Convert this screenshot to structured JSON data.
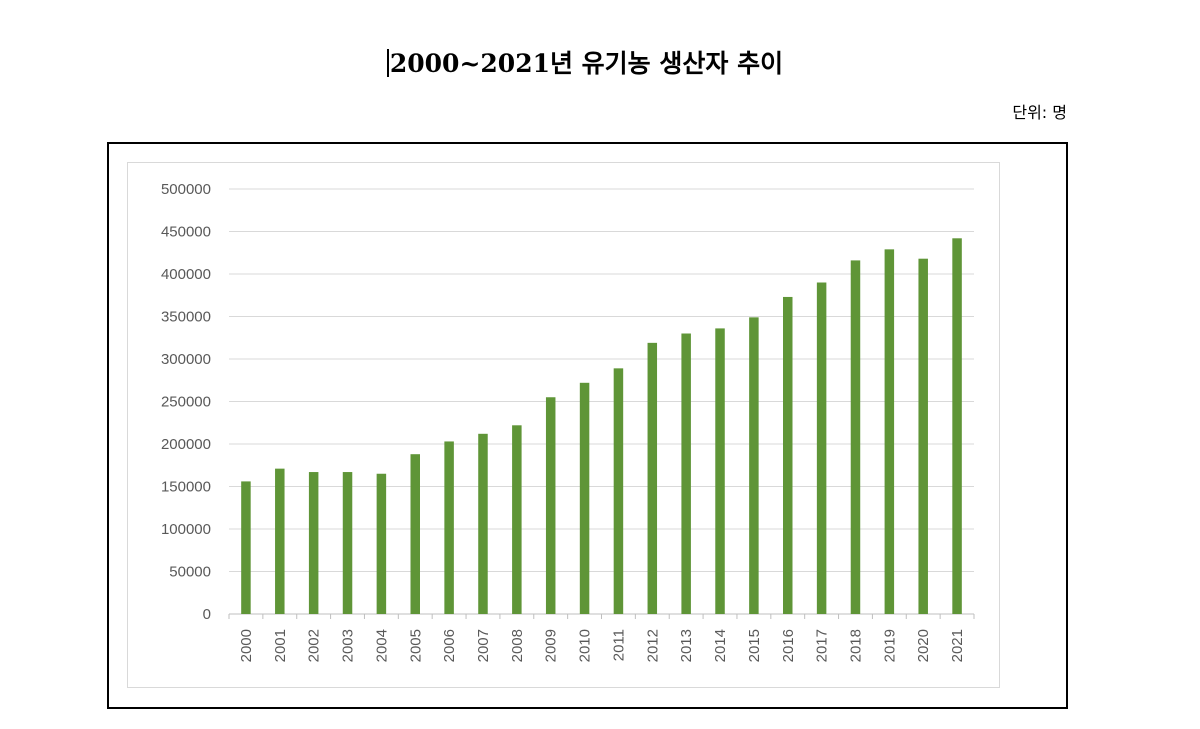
{
  "title": "2000~2021년 유기농 생산자 추이",
  "unit_label": "단위: 명",
  "chart_data": {
    "type": "bar",
    "categories": [
      "2000",
      "2001",
      "2002",
      "2003",
      "2004",
      "2005",
      "2006",
      "2007",
      "2008",
      "2009",
      "2010",
      "2011",
      "2012",
      "2013",
      "2014",
      "2015",
      "2016",
      "2017",
      "2018",
      "2019",
      "2020",
      "2021"
    ],
    "series": [
      {
        "values": [
          156000,
          171000,
          167000,
          167000,
          165000,
          188000,
          203000,
          212000,
          222000,
          255000,
          272000,
          289000,
          319000,
          330000,
          336000,
          349000,
          373000,
          390000,
          416000,
          429000,
          418000,
          442000
        ],
        "color": "#5f9537"
      }
    ],
    "yticks": [
      "0",
      "50000",
      "100000",
      "150000",
      "200000",
      "250000",
      "300000",
      "350000",
      "400000",
      "450000",
      "500000"
    ],
    "ylim": [
      0,
      500000
    ],
    "grid": true,
    "legend": "none"
  }
}
